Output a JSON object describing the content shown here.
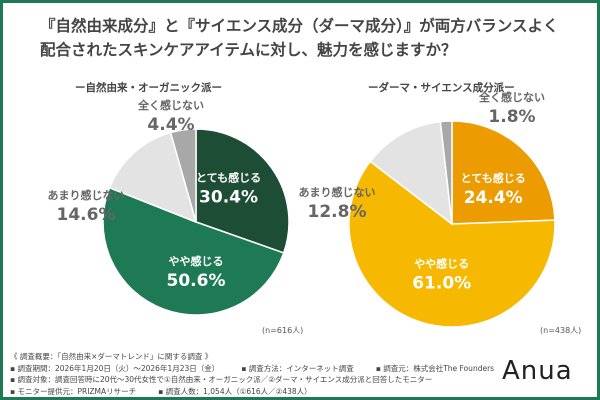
{
  "title_line1": "『自然由来成分』と『サイエンス成分（ダーマ成分）』が両方バランスよく",
  "title_line2": "配合されたスキンケアアイテムに対し、魅力を感じますか？",
  "chart_data": [
    {
      "type": "pie",
      "title": "ー自然由来・オーガニック派ー",
      "n_label": "(n=616人)",
      "start": "12 o'clock clockwise",
      "slices": [
        {
          "label": "とても感じる",
          "value": 30.4,
          "display": "30.4%",
          "color": "#1d4d35",
          "inside": true
        },
        {
          "label": "やや感じる",
          "value": 50.6,
          "display": "50.6%",
          "color": "#1e7a55",
          "inside": true
        },
        {
          "label": "あまり感じない",
          "value": 14.6,
          "display": "14.6%",
          "color": "#e3e3e3",
          "inside": false
        },
        {
          "label": "全く感じない",
          "value": 4.4,
          "display": "4.4%",
          "color": "#a8a8a8",
          "inside": false
        }
      ]
    },
    {
      "type": "pie",
      "title": "ーダーマ・サイエンス成分派ー",
      "n_label": "(n=438人)",
      "start": "12 o'clock clockwise",
      "slices": [
        {
          "label": "とても感じる",
          "value": 24.4,
          "display": "24.4%",
          "color": "#ec9c00",
          "inside": true
        },
        {
          "label": "やや感じる",
          "value": 61.0,
          "display": "61.0%",
          "color": "#f6b800",
          "inside": true
        },
        {
          "label": "あまり感じない",
          "value": 12.8,
          "display": "12.8%",
          "color": "#e3e3e3",
          "inside": false
        },
        {
          "label": "全く感じない",
          "value": 1.8,
          "display": "1.8%",
          "color": "#a8a8a8",
          "inside": false
        }
      ]
    }
  ],
  "footer": {
    "l1": "《 調査概要：「自然由来×ダーマトレンド」に関する調査 》",
    "l2a": "▪ 調査期間：2026年1月20日（火）～2026年1月23日（金）",
    "l2b": "▪ 調査方法：インターネット調査",
    "l2c": "▪ 調査元：株式会社The Founders",
    "l3": "▪ 調査対象：調査回答時に20代～30代女性で①自然由来・オーガニック派／②ダーマ・サイエンス成分派と回答したモニター",
    "l4a": "▪ モニター提供元：PRIZMAリサーチ",
    "l4b": "▪ 調査人数：1,054人（①616人／②438人）"
  },
  "logo": "Anua"
}
